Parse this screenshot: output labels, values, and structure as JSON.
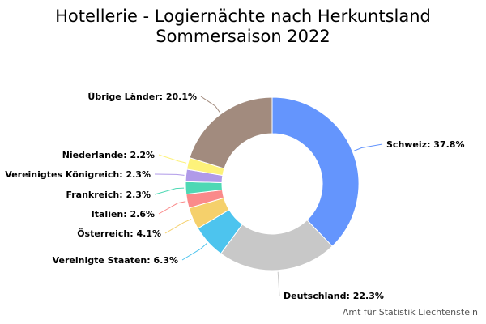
{
  "chart_data": {
    "type": "pie",
    "variant": "donut",
    "title_lines": [
      "Hotellerie - Logiernächte nach Herkuntsland",
      "Sommersaison 2022"
    ],
    "slices": [
      {
        "label": "Schweiz",
        "value": 37.8,
        "color": "#6495fd",
        "data_label": "Schweiz: 37.8%"
      },
      {
        "label": "Deutschland",
        "value": 22.3,
        "color": "#c8c8c8",
        "data_label": "Deutschland: 22.3%"
      },
      {
        "label": "Vereinigte Staaten",
        "value": 6.3,
        "color": "#4dc4ee",
        "data_label": "Vereinigte Staaten: 6.3%"
      },
      {
        "label": "Österreich",
        "value": 4.1,
        "color": "#f5d06b",
        "data_label": "Österreich: 4.1%"
      },
      {
        "label": "Italien",
        "value": 2.6,
        "color": "#fa8a8a",
        "data_label": "Italien: 2.6%"
      },
      {
        "label": "Frankreich",
        "value": 2.3,
        "color": "#4ed8b4",
        "data_label": "Frankreich: 2.3%"
      },
      {
        "label": "Vereinigtes Königreich",
        "value": 2.3,
        "color": "#b09ae8",
        "data_label": "Vereinigtes Königreich: 2.3%"
      },
      {
        "label": "Niederlande",
        "value": 2.2,
        "color": "#fdf27a",
        "data_label": "Niederlande: 2.2%"
      },
      {
        "label": "Übrige Länder",
        "value": 20.1,
        "color": "#a28b7e",
        "data_label": "Übrige Länder: 20.1%"
      }
    ],
    "legend": "none",
    "labels": "outside with connector lines",
    "start_angle": "12 o'clock, clockwise"
  },
  "footer": {
    "source": "Amt für Statistik Liechtenstein"
  }
}
